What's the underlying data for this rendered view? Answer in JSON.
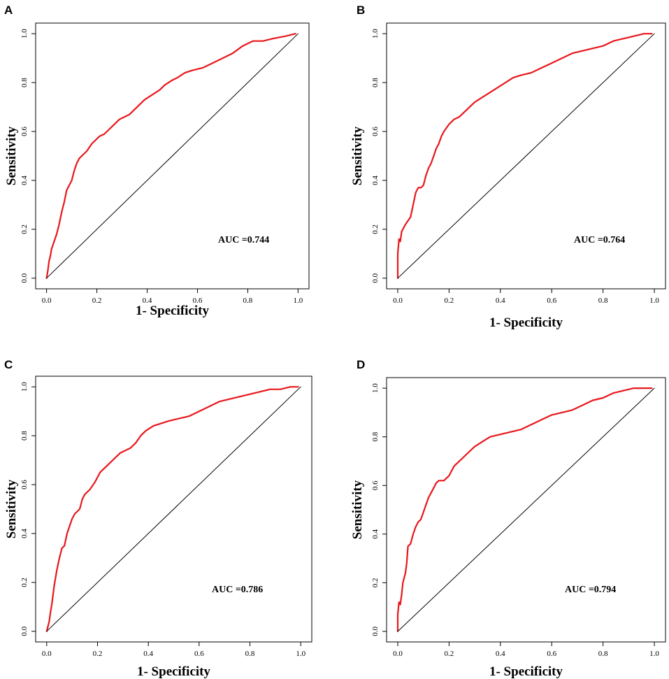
{
  "figure": {
    "panel_colors": {
      "roc": "#e8171c",
      "diagonal": "#000000",
      "frame": "#000000"
    }
  },
  "chart_data": [
    {
      "panel": "A",
      "type": "line",
      "xlabel": "1- Specificity",
      "ylabel": "Sensitivity",
      "xlim": [
        0,
        1
      ],
      "ylim": [
        0,
        1
      ],
      "xticks": [
        "0.0",
        "0.2",
        "0.4",
        "0.6",
        "0.8",
        "1.0"
      ],
      "yticks": [
        "0.0",
        "0.2",
        "0.4",
        "0.6",
        "0.8",
        "1.0"
      ],
      "annotation": "AUC =0.744",
      "series": [
        {
          "name": "ROC",
          "x": [
            0.0,
            0.005,
            0.01,
            0.015,
            0.02,
            0.03,
            0.04,
            0.05,
            0.06,
            0.07,
            0.08,
            0.09,
            0.1,
            0.11,
            0.12,
            0.13,
            0.14,
            0.16,
            0.18,
            0.2,
            0.21,
            0.23,
            0.25,
            0.27,
            0.29,
            0.31,
            0.33,
            0.35,
            0.37,
            0.39,
            0.42,
            0.45,
            0.47,
            0.5,
            0.52,
            0.55,
            0.58,
            0.62,
            0.66,
            0.7,
            0.74,
            0.78,
            0.82,
            0.86,
            0.9,
            0.95,
            0.99
          ],
          "y": [
            0.0,
            0.03,
            0.07,
            0.09,
            0.12,
            0.15,
            0.18,
            0.22,
            0.27,
            0.31,
            0.36,
            0.38,
            0.4,
            0.44,
            0.47,
            0.49,
            0.5,
            0.52,
            0.55,
            0.57,
            0.58,
            0.59,
            0.61,
            0.63,
            0.65,
            0.66,
            0.67,
            0.69,
            0.71,
            0.73,
            0.75,
            0.77,
            0.79,
            0.81,
            0.82,
            0.84,
            0.85,
            0.86,
            0.88,
            0.9,
            0.92,
            0.95,
            0.97,
            0.97,
            0.98,
            0.99,
            1.0
          ]
        },
        {
          "name": "Reference",
          "x": [
            0,
            1
          ],
          "y": [
            0,
            1
          ]
        }
      ]
    },
    {
      "panel": "B",
      "type": "line",
      "xlabel": "1- Specificity",
      "ylabel": "Sensitivity",
      "xlim": [
        0,
        1
      ],
      "ylim": [
        0,
        1
      ],
      "xticks": [
        "0.0",
        "0.2",
        "0.4",
        "0.6",
        "0.8",
        "1.0"
      ],
      "yticks": [
        "0.0",
        "0.2",
        "0.4",
        "0.6",
        "0.8",
        "1.0"
      ],
      "annotation": "AUC =0.764",
      "series": [
        {
          "name": "ROC",
          "x": [
            0.0,
            0.0,
            0.005,
            0.01,
            0.015,
            0.02,
            0.03,
            0.05,
            0.06,
            0.07,
            0.08,
            0.09,
            0.1,
            0.11,
            0.12,
            0.13,
            0.14,
            0.15,
            0.16,
            0.17,
            0.18,
            0.2,
            0.22,
            0.24,
            0.26,
            0.28,
            0.3,
            0.33,
            0.36,
            0.39,
            0.42,
            0.45,
            0.48,
            0.52,
            0.56,
            0.6,
            0.64,
            0.68,
            0.72,
            0.76,
            0.8,
            0.84,
            0.88,
            0.92,
            0.96,
            0.99
          ],
          "y": [
            0.0,
            0.1,
            0.16,
            0.15,
            0.19,
            0.2,
            0.22,
            0.25,
            0.3,
            0.35,
            0.37,
            0.37,
            0.38,
            0.42,
            0.45,
            0.47,
            0.5,
            0.53,
            0.55,
            0.58,
            0.6,
            0.63,
            0.65,
            0.66,
            0.68,
            0.7,
            0.72,
            0.74,
            0.76,
            0.78,
            0.8,
            0.82,
            0.83,
            0.84,
            0.86,
            0.88,
            0.9,
            0.92,
            0.93,
            0.94,
            0.95,
            0.97,
            0.98,
            0.99,
            1.0,
            1.0
          ]
        },
        {
          "name": "Reference",
          "x": [
            0,
            1
          ],
          "y": [
            0,
            1
          ]
        }
      ]
    },
    {
      "panel": "C",
      "type": "line",
      "xlabel": "1- Specificity",
      "ylabel": "Sensitivity",
      "xlim": [
        0,
        1
      ],
      "ylim": [
        0,
        1
      ],
      "xticks": [
        "0.0",
        "0.2",
        "0.4",
        "0.6",
        "0.8",
        "1.0"
      ],
      "yticks": [
        "0.0",
        "0.2",
        "0.4",
        "0.6",
        "0.8",
        "1.0"
      ],
      "annotation": "AUC =0.786",
      "series": [
        {
          "name": "ROC",
          "x": [
            0.0,
            0.005,
            0.01,
            0.015,
            0.02,
            0.025,
            0.03,
            0.04,
            0.05,
            0.06,
            0.07,
            0.08,
            0.09,
            0.1,
            0.11,
            0.12,
            0.13,
            0.14,
            0.15,
            0.17,
            0.19,
            0.21,
            0.23,
            0.25,
            0.27,
            0.29,
            0.31,
            0.33,
            0.35,
            0.37,
            0.39,
            0.42,
            0.45,
            0.48,
            0.52,
            0.56,
            0.6,
            0.64,
            0.68,
            0.72,
            0.76,
            0.8,
            0.84,
            0.88,
            0.92,
            0.96,
            0.99
          ],
          "y": [
            0.0,
            0.02,
            0.04,
            0.08,
            0.11,
            0.15,
            0.19,
            0.25,
            0.3,
            0.34,
            0.35,
            0.4,
            0.43,
            0.46,
            0.48,
            0.49,
            0.5,
            0.54,
            0.56,
            0.58,
            0.61,
            0.65,
            0.67,
            0.69,
            0.71,
            0.73,
            0.74,
            0.75,
            0.77,
            0.8,
            0.82,
            0.84,
            0.85,
            0.86,
            0.87,
            0.88,
            0.9,
            0.92,
            0.94,
            0.95,
            0.96,
            0.97,
            0.98,
            0.99,
            0.99,
            1.0,
            1.0
          ]
        },
        {
          "name": "Reference",
          "x": [
            0,
            1
          ],
          "y": [
            0,
            1
          ]
        }
      ]
    },
    {
      "panel": "D",
      "type": "line",
      "xlabel": "1- Specificity",
      "ylabel": "Sensitivity",
      "xlim": [
        0,
        1
      ],
      "ylim": [
        0,
        1
      ],
      "xticks": [
        "0.0",
        "0.2",
        "0.4",
        "0.6",
        "0.8",
        "1.0"
      ],
      "yticks": [
        "0.0",
        "0.2",
        "0.4",
        "0.6",
        "0.8",
        "1.0"
      ],
      "annotation": "AUC =0.794",
      "series": [
        {
          "name": "ROC",
          "x": [
            0.0,
            0.0,
            0.005,
            0.01,
            0.015,
            0.02,
            0.03,
            0.035,
            0.04,
            0.05,
            0.06,
            0.07,
            0.08,
            0.09,
            0.1,
            0.11,
            0.12,
            0.13,
            0.14,
            0.15,
            0.16,
            0.18,
            0.2,
            0.22,
            0.24,
            0.26,
            0.28,
            0.3,
            0.33,
            0.36,
            0.4,
            0.44,
            0.48,
            0.52,
            0.56,
            0.6,
            0.64,
            0.68,
            0.72,
            0.76,
            0.8,
            0.84,
            0.88,
            0.92,
            0.96,
            0.99
          ],
          "y": [
            0.0,
            0.07,
            0.12,
            0.11,
            0.15,
            0.2,
            0.24,
            0.28,
            0.35,
            0.36,
            0.4,
            0.43,
            0.45,
            0.46,
            0.49,
            0.52,
            0.55,
            0.57,
            0.59,
            0.61,
            0.62,
            0.62,
            0.64,
            0.68,
            0.7,
            0.72,
            0.74,
            0.76,
            0.78,
            0.8,
            0.81,
            0.82,
            0.83,
            0.85,
            0.87,
            0.89,
            0.9,
            0.91,
            0.93,
            0.95,
            0.96,
            0.98,
            0.99,
            1.0,
            1.0,
            1.0
          ]
        },
        {
          "name": "Reference",
          "x": [
            0,
            1
          ],
          "y": [
            0,
            1
          ]
        }
      ]
    }
  ]
}
